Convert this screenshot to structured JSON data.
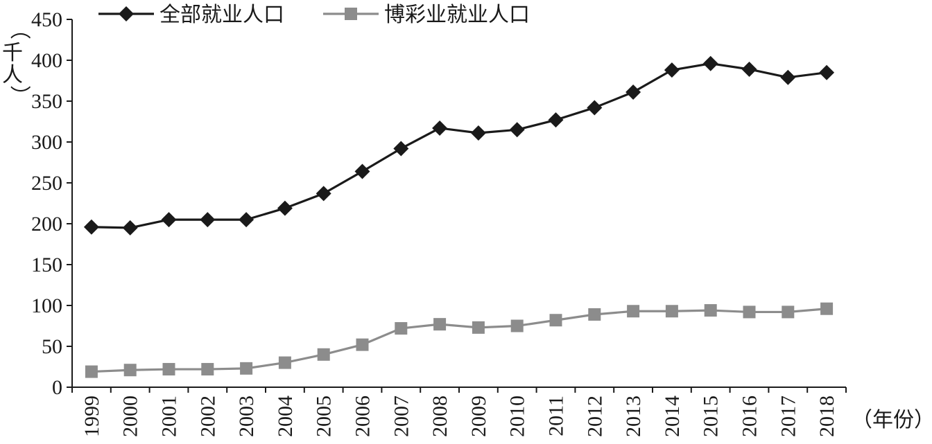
{
  "chart_data": {
    "type": "line",
    "title": "",
    "ylabel": "（千人）",
    "xlabel": "（年份）",
    "ylim": [
      0,
      450
    ],
    "yticks": [
      0,
      50,
      100,
      150,
      200,
      250,
      300,
      350,
      400,
      450
    ],
    "categories": [
      "1999",
      "2000",
      "2001",
      "2002",
      "2003",
      "2004",
      "2005",
      "2006",
      "2007",
      "2008",
      "2009",
      "2010",
      "2011",
      "2012",
      "2013",
      "2014",
      "2015",
      "2016",
      "2017",
      "2018"
    ],
    "legend_position": "top-left",
    "grid": false,
    "series": [
      {
        "name": "全部就业人口",
        "color": "#1a1a1a",
        "marker": "diamond",
        "values": [
          196,
          195,
          205,
          205,
          205,
          219,
          237,
          264,
          292,
          317,
          311,
          315,
          327,
          342,
          361,
          388,
          396,
          389,
          379,
          385
        ]
      },
      {
        "name": "博彩业就业人口",
        "color": "#8c8c8c",
        "marker": "square",
        "values": [
          19,
          21,
          22,
          22,
          23,
          30,
          40,
          52,
          72,
          77,
          73,
          75,
          82,
          89,
          93,
          93,
          94,
          92,
          92,
          96
        ]
      }
    ]
  }
}
